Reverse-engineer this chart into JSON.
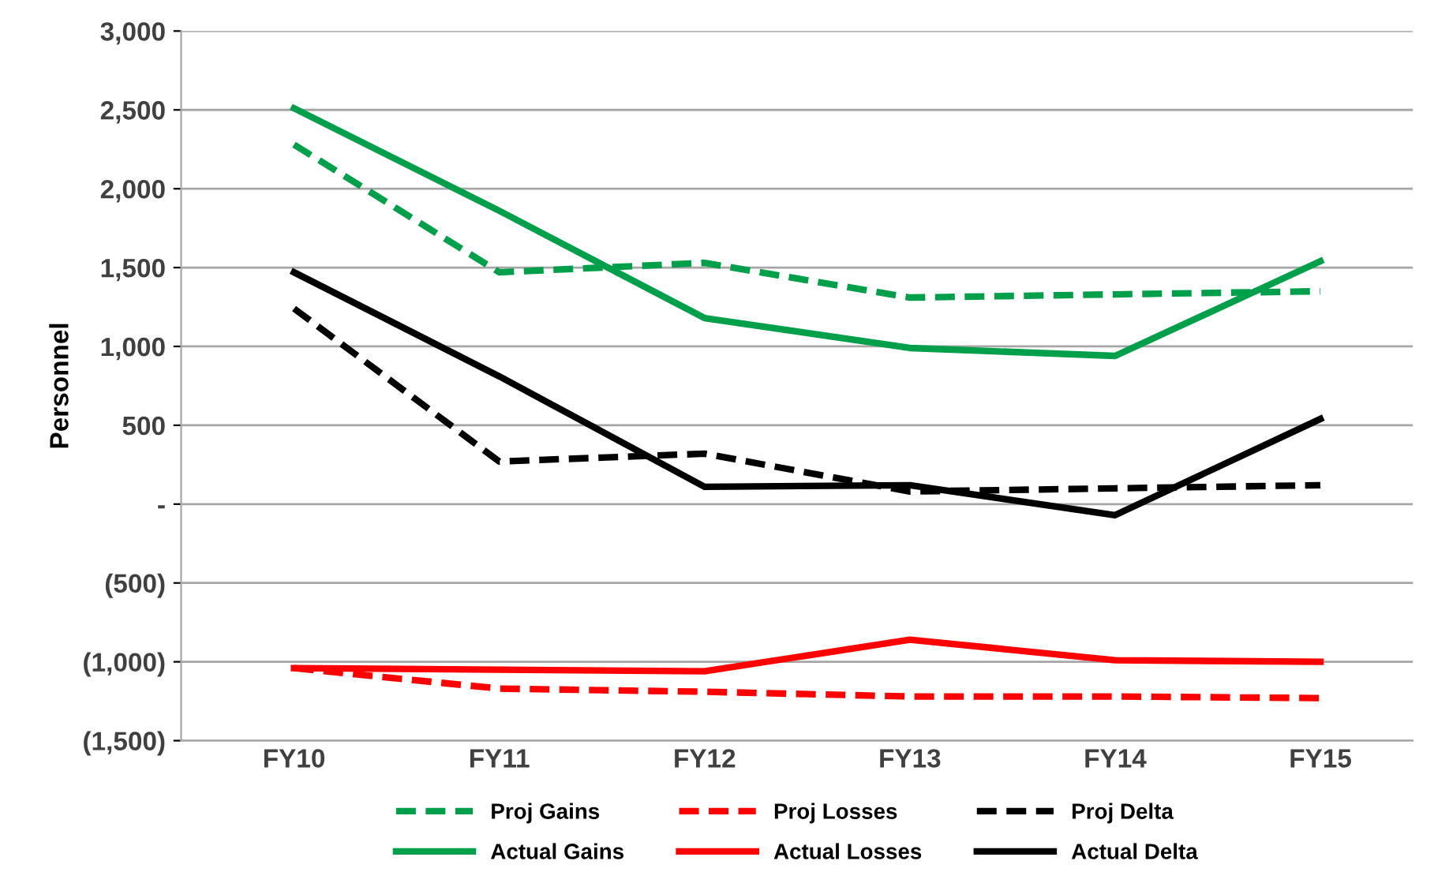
{
  "chart_data": {
    "type": "line",
    "ylabel": "Personnel",
    "categories": [
      "FY10",
      "FY11",
      "FY12",
      "FY13",
      "FY14",
      "FY15"
    ],
    "series": [
      {
        "name": "Proj Gains",
        "color": "#00a04b",
        "line_style": "dashed",
        "values": [
          2280,
          1470,
          1530,
          1310,
          1330,
          1350
        ]
      },
      {
        "name": "Proj Losses",
        "color": "#ff0000",
        "line_style": "dashed",
        "values": [
          -1040,
          -1170,
          -1190,
          -1220,
          -1220,
          -1230
        ]
      },
      {
        "name": "Proj Delta",
        "color": "#000000",
        "line_style": "dashed",
        "values": [
          1240,
          270,
          320,
          80,
          100,
          120
        ]
      },
      {
        "name": "Actual Gains",
        "color": "#00a04b",
        "line_style": "solid",
        "values": [
          2510,
          1860,
          1180,
          990,
          940,
          1540
        ]
      },
      {
        "name": "Actual Losses",
        "color": "#ff0000",
        "line_style": "solid",
        "values": [
          -1040,
          -1050,
          -1060,
          -860,
          -990,
          -1000
        ]
      },
      {
        "name": "Actual Delta",
        "color": "#000000",
        "line_style": "solid",
        "values": [
          1470,
          810,
          110,
          120,
          -70,
          540
        ]
      }
    ],
    "ylim": [
      -1500,
      3000
    ],
    "yticks": [
      {
        "value": -1500,
        "label": "(1,500)"
      },
      {
        "value": -1000,
        "label": "(1,000)"
      },
      {
        "value": -500,
        "label": "(500)"
      },
      {
        "value": 0,
        "label": "-"
      },
      {
        "value": 500,
        "label": "500"
      },
      {
        "value": 1000,
        "label": "1,000"
      },
      {
        "value": 1500,
        "label": "1,500"
      },
      {
        "value": 2000,
        "label": "2,000"
      },
      {
        "value": 2500,
        "label": "2,500"
      },
      {
        "value": 3000,
        "label": "3,000"
      }
    ],
    "grid": "y",
    "legend": "bottom",
    "marker": "none"
  }
}
